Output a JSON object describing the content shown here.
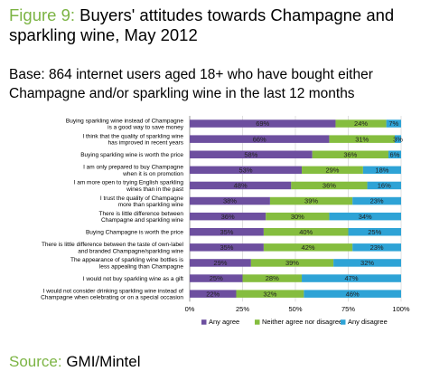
{
  "title": {
    "figure_label": "Figure 9:",
    "text": "Buyers' attitudes towards Champagne and sparkling wine, May 2012"
  },
  "base": "Base: 864 internet users aged 18+ who have bought either Champagne and/or sparkling wine in the last 12 months",
  "source": {
    "label": "Source:",
    "value": "GMI/Mintel"
  },
  "colors": {
    "agree": "#6d4f9f",
    "neither": "#85bd3f",
    "disagree": "#2ea3d6",
    "accent": "#7cb444"
  },
  "chart_data": {
    "type": "bar",
    "orientation": "horizontal",
    "stacked": true,
    "categories": [
      [
        "Buying sparkling wine instead of  Champagne",
        "is a good way to save money"
      ],
      [
        "I think that the quality of sparkling wine",
        "has improved in recent years"
      ],
      [
        "Buying sparkling wine is worth the price"
      ],
      [
        "I am only prepared to buy Champagne",
        "when it is on promotion"
      ],
      [
        "I am more open to trying English sparkling",
        "wines than in the past"
      ],
      [
        "I trust the quality of Champagne",
        "more than sparkling wine"
      ],
      [
        "There is little difference between",
        "Champagne and sparkling wine"
      ],
      [
        "Buying Champagne is worth the price"
      ],
      [
        "There is little difference between the taste of own-label",
        "and branded Champagne/sparkling wine"
      ],
      [
        "The appearance of sparkling wine bottles is",
        "less appealing than Champagne"
      ],
      [
        "I would not buy sparkling wine as a gift"
      ],
      [
        "I would not consider drinking sparkling wine instead of",
        "Champagne when celebrating or on a special occasion"
      ]
    ],
    "series": [
      {
        "name": "Any agree",
        "values": [
          69,
          66,
          58,
          53,
          48,
          38,
          36,
          35,
          35,
          29,
          25,
          22
        ]
      },
      {
        "name": "Neither agree nor disagree",
        "values": [
          24,
          31,
          36,
          29,
          36,
          39,
          30,
          40,
          42,
          39,
          28,
          32
        ]
      },
      {
        "name": "Any disagree",
        "values": [
          7,
          3,
          6,
          18,
          16,
          23,
          34,
          25,
          23,
          32,
          47,
          46
        ]
      }
    ],
    "xlim": [
      0,
      100
    ],
    "xticks": [
      "0%",
      "25%",
      "50%",
      "75%",
      "100%"
    ],
    "grid": true,
    "legend_position": "bottom"
  }
}
